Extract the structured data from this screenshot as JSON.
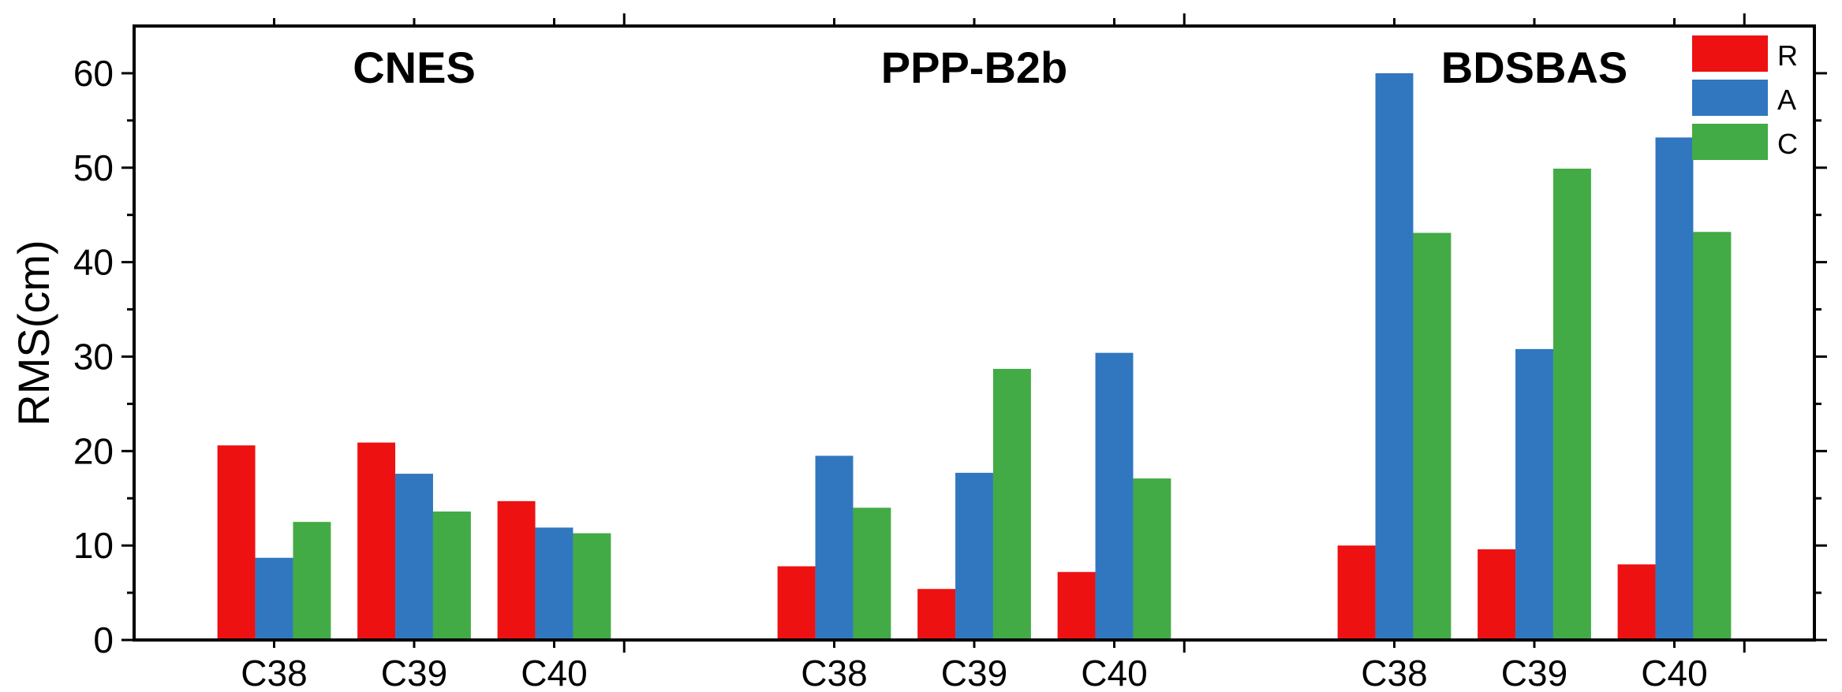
{
  "chart_data": {
    "type": "bar",
    "ylabel": "RMS(cm)",
    "ylim": [
      0,
      65
    ],
    "yticks": [
      0,
      10,
      20,
      30,
      40,
      50,
      60
    ],
    "legend_position": "top-right",
    "series": [
      {
        "name": "R",
        "color": "#ee1111"
      },
      {
        "name": "A",
        "color": "#3177bf"
      },
      {
        "name": "C",
        "color": "#42ab45"
      }
    ],
    "groups": [
      {
        "title": "CNES",
        "categories": [
          {
            "label": "C38",
            "values": [
              20.6,
              8.7,
              12.5
            ]
          },
          {
            "label": "C39",
            "values": [
              20.9,
              17.6,
              13.6
            ]
          },
          {
            "label": "C40",
            "values": [
              14.7,
              11.9,
              11.3
            ]
          }
        ]
      },
      {
        "title": "PPP-B2b",
        "categories": [
          {
            "label": "C38",
            "values": [
              7.8,
              19.5,
              14.0
            ]
          },
          {
            "label": "C39",
            "values": [
              5.4,
              17.7,
              28.7
            ]
          },
          {
            "label": "C40",
            "values": [
              7.2,
              30.4,
              17.1
            ]
          }
        ]
      },
      {
        "title": "BDSBAS",
        "categories": [
          {
            "label": "C38",
            "values": [
              10.0,
              60.0,
              43.1
            ]
          },
          {
            "label": "C39",
            "values": [
              9.6,
              30.8,
              49.9
            ]
          },
          {
            "label": "C40",
            "values": [
              8.0,
              53.2,
              43.2
            ]
          }
        ]
      }
    ]
  }
}
